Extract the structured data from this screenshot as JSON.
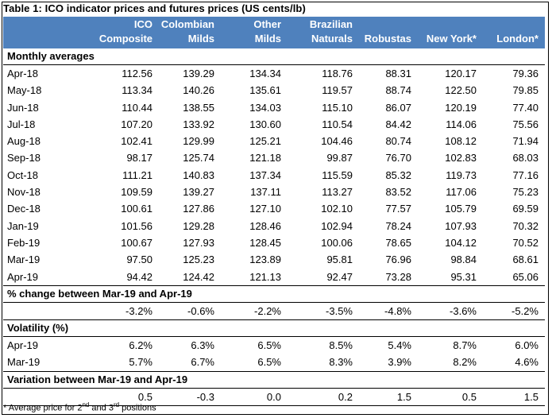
{
  "table": {
    "title": "Table 1:  ICO indicator prices and futures prices (US cents/lb)",
    "columns": [
      {
        "line1": "ICO",
        "line2": "Composite"
      },
      {
        "line1": "Colombian",
        "line2": "Milds"
      },
      {
        "line1": "Other",
        "line2": "Milds"
      },
      {
        "line1": "Brazilian",
        "line2": "Naturals"
      },
      {
        "line1": "",
        "line2": "Robustas"
      },
      {
        "line1": "",
        "line2": "New York*"
      },
      {
        "line1": "",
        "line2": "London*"
      }
    ],
    "monthly_label": "Monthly averages",
    "monthly": [
      {
        "month": "Apr-18",
        "v": [
          "112.56",
          "139.29",
          "134.34",
          "118.76",
          "88.31",
          "120.17",
          "79.36"
        ]
      },
      {
        "month": "May-18",
        "v": [
          "113.34",
          "140.26",
          "135.61",
          "119.57",
          "88.74",
          "122.50",
          "79.85"
        ]
      },
      {
        "month": "Jun-18",
        "v": [
          "110.44",
          "138.55",
          "134.03",
          "115.10",
          "86.07",
          "120.19",
          "77.40"
        ]
      },
      {
        "month": "Jul-18",
        "v": [
          "107.20",
          "133.92",
          "130.60",
          "110.54",
          "84.42",
          "114.06",
          "75.56"
        ]
      },
      {
        "month": "Aug-18",
        "v": [
          "102.41",
          "129.99",
          "125.21",
          "104.46",
          "80.74",
          "108.12",
          "71.94"
        ]
      },
      {
        "month": "Sep-18",
        "v": [
          "98.17",
          "125.74",
          "121.18",
          "99.87",
          "76.70",
          "102.83",
          "68.03"
        ]
      },
      {
        "month": "Oct-18",
        "v": [
          "111.21",
          "140.83",
          "137.34",
          "115.59",
          "85.32",
          "119.73",
          "77.16"
        ]
      },
      {
        "month": "Nov-18",
        "v": [
          "109.59",
          "139.27",
          "137.11",
          "113.27",
          "83.52",
          "117.06",
          "75.23"
        ]
      },
      {
        "month": "Dec-18",
        "v": [
          "100.61",
          "127.86",
          "127.10",
          "102.10",
          "77.57",
          "105.79",
          "69.59"
        ]
      },
      {
        "month": "Jan-19",
        "v": [
          "101.56",
          "129.28",
          "128.46",
          "102.94",
          "78.24",
          "107.93",
          "70.32"
        ]
      },
      {
        "month": "Feb-19",
        "v": [
          "100.67",
          "127.93",
          "128.45",
          "100.06",
          "78.65",
          "104.12",
          "70.52"
        ]
      },
      {
        "month": "Mar-19",
        "v": [
          "97.50",
          "125.23",
          "123.89",
          "95.81",
          "76.96",
          "98.84",
          "68.61"
        ]
      },
      {
        "month": "Apr-19",
        "v": [
          "94.42",
          "124.42",
          "121.13",
          "92.47",
          "73.28",
          "95.31",
          "65.06"
        ]
      }
    ],
    "change_label": "% change between Mar-19 and Apr-19",
    "change_values": [
      "-3.2%",
      "-0.6%",
      "-2.2%",
      "-3.5%",
      "-4.8%",
      "-3.6%",
      "-5.2%"
    ],
    "volatility_label": "Volatility (%)",
    "volatility": [
      {
        "month": "Apr-19",
        "v": [
          "6.2%",
          "6.3%",
          "6.5%",
          "8.5%",
          "5.4%",
          "8.7%",
          "6.0%"
        ]
      },
      {
        "month": "Mar-19",
        "v": [
          "5.7%",
          "6.7%",
          "6.5%",
          "8.3%",
          "3.9%",
          "8.2%",
          "4.6%"
        ]
      }
    ],
    "variation_label": "Variation between Mar-19 and Apr-19",
    "variation_values": [
      "0.5",
      "-0.3",
      "0.0",
      "0.2",
      "1.5",
      "0.5",
      "1.5"
    ],
    "footnote": {
      "prefix": "* Average price for 2",
      "sup1": "nd",
      "mid": " and 3",
      "sup2": "rd",
      "suffix": " positions"
    }
  },
  "colors": {
    "header_bg": "#4f81bd",
    "header_text": "#ffffff"
  }
}
